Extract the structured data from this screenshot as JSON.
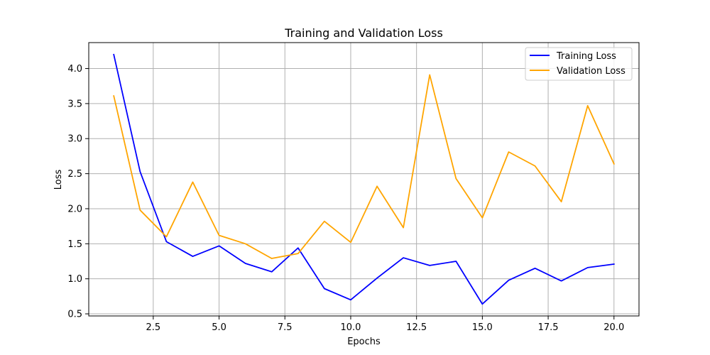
{
  "chart_data": {
    "type": "line",
    "title": "Training and Validation Loss",
    "xlabel": "Epochs",
    "ylabel": "Loss",
    "xlim": [
      0.05,
      20.95
    ],
    "ylim": [
      0.47,
      4.37
    ],
    "xticks": [
      2.5,
      5.0,
      7.5,
      10.0,
      12.5,
      15.0,
      17.5,
      20.0
    ],
    "xtick_labels": [
      "2.5",
      "5.0",
      "7.5",
      "10.0",
      "12.5",
      "15.0",
      "17.5",
      "20.0"
    ],
    "yticks": [
      0.5,
      1.0,
      1.5,
      2.0,
      2.5,
      3.0,
      3.5,
      4.0
    ],
    "ytick_labels": [
      "0.5",
      "1.0",
      "1.5",
      "2.0",
      "2.5",
      "3.0",
      "3.5",
      "4.0"
    ],
    "grid": true,
    "legend_position": "top-right",
    "x": [
      1,
      2,
      3,
      4,
      5,
      6,
      7,
      8,
      9,
      10,
      11,
      12,
      13,
      14,
      15,
      16,
      17,
      18,
      19,
      20
    ],
    "series": [
      {
        "name": "Training Loss",
        "color": "#0000ff",
        "values": [
          4.2,
          2.53,
          1.53,
          1.32,
          1.47,
          1.22,
          1.1,
          1.44,
          0.86,
          0.7,
          1.01,
          1.3,
          1.19,
          1.25,
          0.64,
          0.98,
          1.15,
          0.97,
          1.16,
          1.21
        ]
      },
      {
        "name": "Validation Loss",
        "color": "#ffa500",
        "values": [
          3.61,
          1.98,
          1.6,
          2.38,
          1.62,
          1.5,
          1.29,
          1.36,
          1.82,
          1.52,
          2.32,
          1.73,
          3.91,
          2.43,
          1.87,
          2.81,
          2.61,
          2.1,
          3.47,
          2.64
        ]
      }
    ]
  }
}
